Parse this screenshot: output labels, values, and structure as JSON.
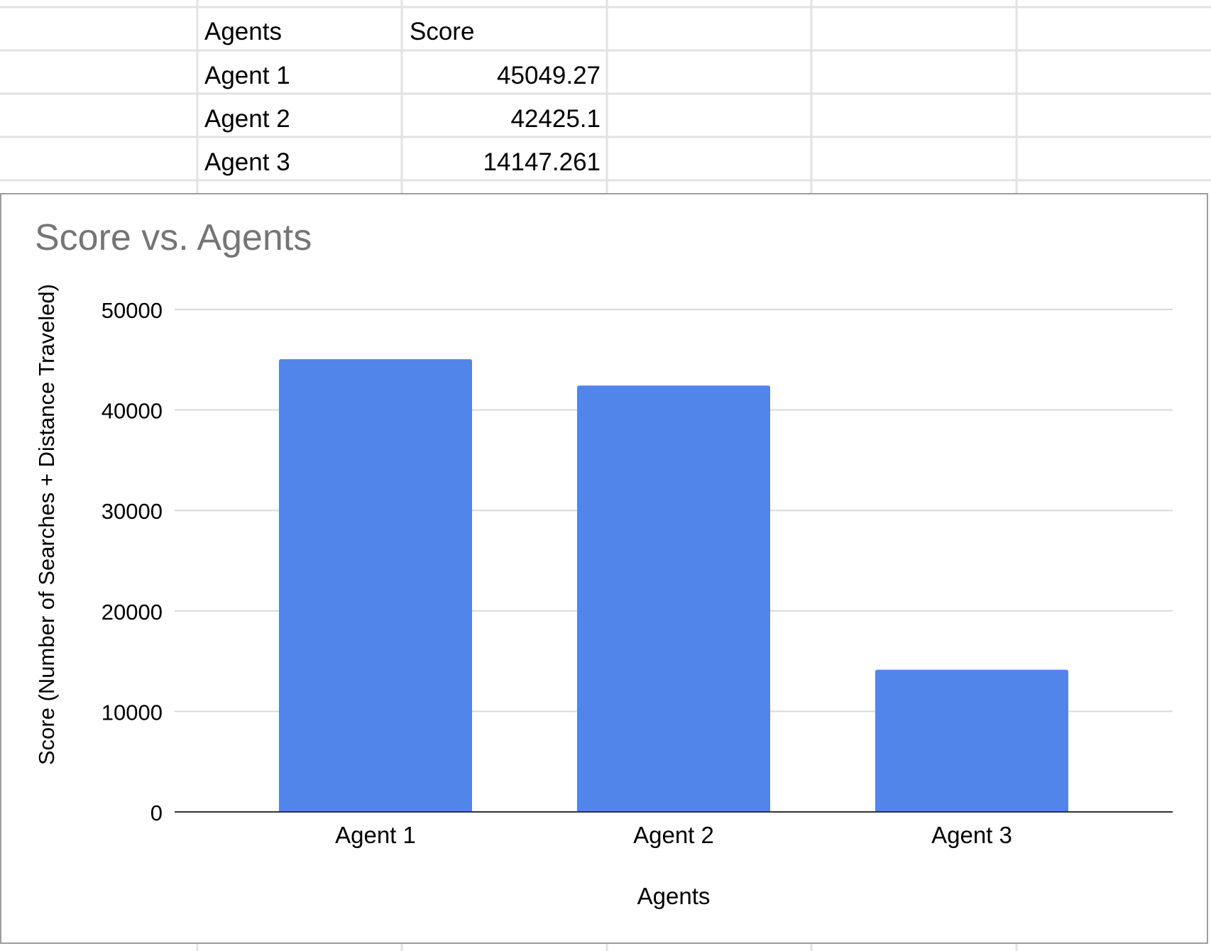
{
  "sheet": {
    "headers": [
      "Agents",
      "Score"
    ],
    "rows": [
      [
        "Agent 1",
        "45049.27"
      ],
      [
        "Agent 2",
        "42425.1"
      ],
      [
        "Agent 3",
        "14147.261"
      ]
    ]
  },
  "chart_data": {
    "type": "bar",
    "title": "Score vs. Agents",
    "xlabel": "Agents",
    "ylabel": "Score (Number of Searches + Distance Traveled)",
    "categories": [
      "Agent 1",
      "Agent 2",
      "Agent 3"
    ],
    "values": [
      45049.27,
      42425.1,
      14147.261
    ],
    "ylim": [
      0,
      50000
    ],
    "yticks": [
      0,
      10000,
      20000,
      30000,
      40000,
      50000
    ],
    "grid": true,
    "legend": "none",
    "colors": {
      "bar": "#5185ea",
      "title": "#757575",
      "gridline": "#d9d9d9",
      "axis": "#333333",
      "cell_border": "#e2e2e2"
    }
  }
}
